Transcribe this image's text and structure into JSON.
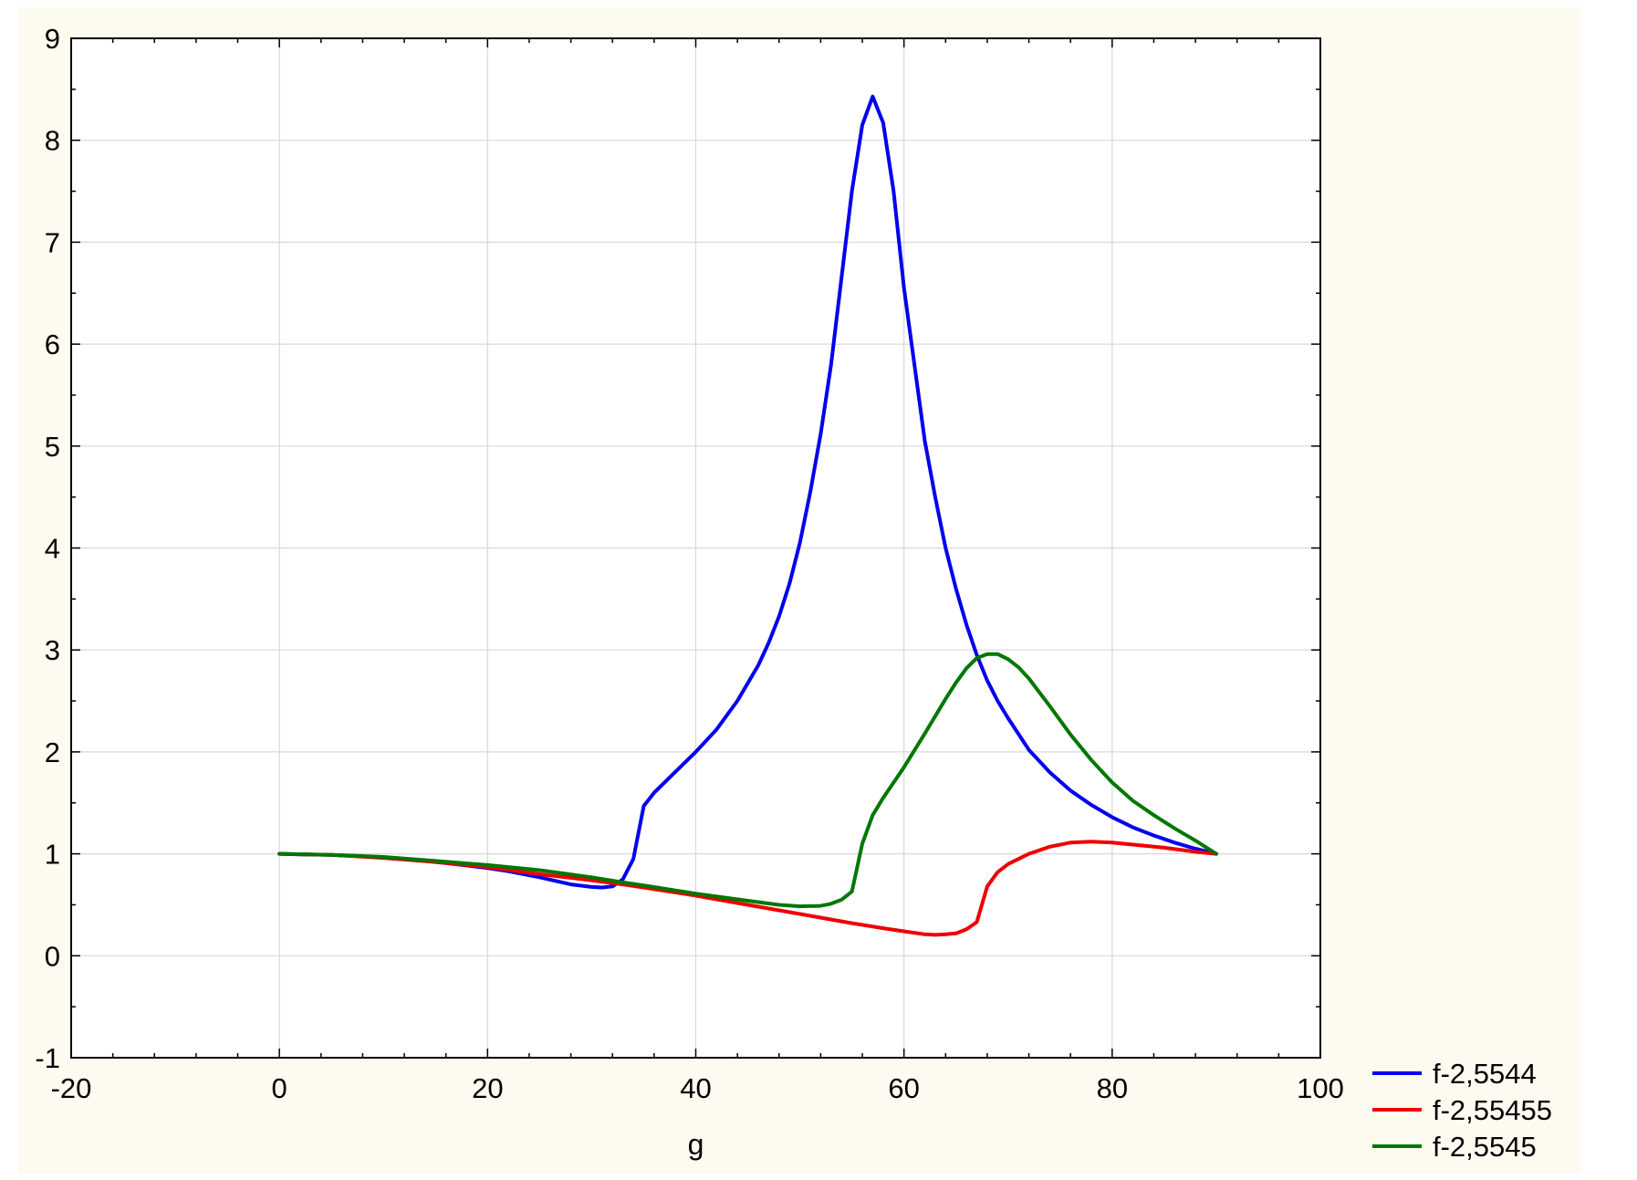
{
  "colors": {
    "background": "#fdfaf0",
    "plot_area": "#ffffff",
    "grid": "#d8d8d8",
    "axis": "#000000"
  },
  "chart_data": {
    "type": "line",
    "title": "",
    "xlabel": "g",
    "ylabel": "",
    "xlim": [
      -20,
      100
    ],
    "ylim": [
      -1,
      9
    ],
    "xticks": [
      -20,
      0,
      20,
      40,
      60,
      80,
      100
    ],
    "yticks": [
      -1,
      0,
      1,
      2,
      3,
      4,
      5,
      6,
      7,
      8,
      9
    ],
    "grid": true,
    "legend_position": "bottom-right, outside plot area",
    "series": [
      {
        "name": "f-2,5544",
        "color": "#0000ee",
        "x": [
          0,
          2,
          5,
          8,
          12,
          16,
          20,
          22,
          25,
          28,
          30,
          31,
          32,
          33,
          34,
          35,
          36,
          38,
          40,
          42,
          44,
          46,
          47,
          48,
          49,
          50,
          51,
          52,
          53,
          54,
          55,
          56,
          57,
          58,
          59,
          60,
          61,
          62,
          63,
          64,
          65,
          66,
          67,
          68,
          69,
          70,
          72,
          74,
          76,
          78,
          80,
          82,
          84,
          86,
          88,
          90
        ],
        "y": [
          1.0,
          0.995,
          0.99,
          0.975,
          0.95,
          0.91,
          0.86,
          0.83,
          0.77,
          0.7,
          0.675,
          0.67,
          0.68,
          0.75,
          0.95,
          1.47,
          1.6,
          1.8,
          2.0,
          2.22,
          2.5,
          2.85,
          3.07,
          3.33,
          3.65,
          4.05,
          4.55,
          5.12,
          5.8,
          6.65,
          7.5,
          8.15,
          8.43,
          8.17,
          7.5,
          6.55,
          5.8,
          5.05,
          4.5,
          4.0,
          3.6,
          3.25,
          2.95,
          2.7,
          2.5,
          2.33,
          2.02,
          1.8,
          1.62,
          1.48,
          1.36,
          1.26,
          1.18,
          1.11,
          1.05,
          1.0
        ]
      },
      {
        "name": "f-2,55455",
        "color": "#ee0000",
        "x": [
          0,
          5,
          10,
          15,
          20,
          25,
          30,
          33,
          35,
          40,
          45,
          50,
          55,
          58,
          60,
          62,
          63,
          64,
          65,
          66,
          67,
          68,
          69,
          70,
          72,
          74,
          76,
          78,
          80,
          82,
          85,
          88,
          90
        ],
        "y": [
          1.0,
          0.99,
          0.96,
          0.92,
          0.87,
          0.8,
          0.74,
          0.7,
          0.67,
          0.59,
          0.5,
          0.41,
          0.32,
          0.27,
          0.24,
          0.21,
          0.205,
          0.21,
          0.22,
          0.26,
          0.33,
          0.68,
          0.82,
          0.9,
          1.0,
          1.07,
          1.11,
          1.12,
          1.11,
          1.09,
          1.06,
          1.02,
          1.0
        ]
      },
      {
        "name": "f-2,5545",
        "color": "#007700",
        "x": [
          0,
          5,
          10,
          15,
          20,
          25,
          30,
          33,
          35,
          40,
          45,
          48,
          50,
          52,
          53,
          54,
          55,
          56,
          57,
          58,
          60,
          62,
          64,
          65,
          66,
          67,
          68,
          69,
          70,
          71,
          72,
          74,
          76,
          78,
          80,
          82,
          84,
          86,
          88,
          90
        ],
        "y": [
          1.0,
          0.99,
          0.97,
          0.93,
          0.89,
          0.84,
          0.77,
          0.72,
          0.69,
          0.61,
          0.54,
          0.5,
          0.485,
          0.49,
          0.51,
          0.55,
          0.63,
          1.1,
          1.38,
          1.55,
          1.85,
          2.18,
          2.52,
          2.68,
          2.82,
          2.92,
          2.96,
          2.96,
          2.91,
          2.83,
          2.72,
          2.45,
          2.17,
          1.92,
          1.7,
          1.52,
          1.38,
          1.25,
          1.13,
          1.0
        ]
      }
    ]
  }
}
